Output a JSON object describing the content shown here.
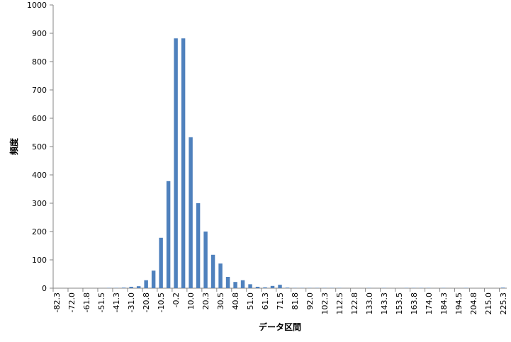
{
  "chart_data": {
    "type": "bar",
    "x_label": "データ区間",
    "y_label": "頻度",
    "categories": [
      "-82.3",
      null,
      "-72.0",
      null,
      "-61.8",
      null,
      "-51.5",
      null,
      "-41.3",
      null,
      "-31.0",
      null,
      "-20.8",
      null,
      "-10.5",
      null,
      "-0.2",
      null,
      "10.0",
      null,
      "20.3",
      null,
      "30.5",
      null,
      "40.8",
      null,
      "51.0",
      null,
      "61.3",
      null,
      "71.5",
      null,
      "81.8",
      null,
      "92.0",
      null,
      "102.3",
      null,
      "112.5",
      null,
      "122.8",
      null,
      "133.0",
      null,
      "143.3",
      null,
      "153.5",
      null,
      "163.8",
      null,
      "174.0",
      null,
      "184.3",
      null,
      "194.5",
      null,
      "204.8",
      null,
      "215.0",
      null,
      "225.3"
    ],
    "values": [
      0,
      0,
      0,
      0,
      0,
      0,
      0,
      1,
      1,
      2,
      5,
      7,
      28,
      62,
      178,
      378,
      882,
      882,
      533,
      300,
      200,
      118,
      87,
      40,
      22,
      28,
      14,
      5,
      3,
      8,
      12,
      2,
      1,
      1,
      1,
      1,
      1,
      1,
      1,
      0,
      0,
      0,
      1,
      0,
      1,
      0,
      0,
      1,
      1,
      1,
      1,
      0,
      1,
      0,
      0,
      1,
      0,
      0,
      0,
      0,
      2
    ],
    "color": "#4f81bd",
    "ylim": [
      0,
      1000
    ],
    "yticks": [
      0,
      100,
      200,
      300,
      400,
      500,
      600,
      700,
      800,
      900,
      1000
    ]
  }
}
